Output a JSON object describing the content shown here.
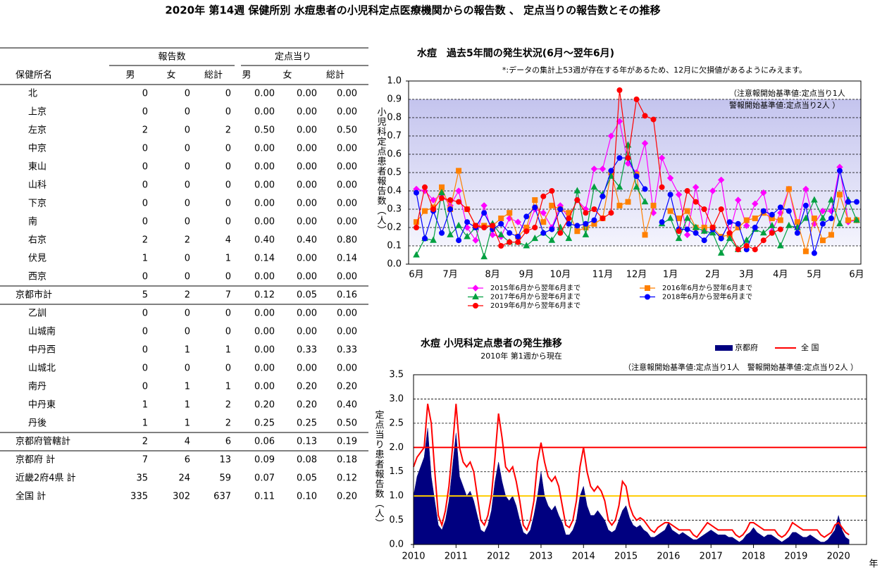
{
  "title": "2020年 第14週 保健所別 水痘患者の小児科定点医療機関からの報告数 、 定点当りの報告数とその推移",
  "table": {
    "group_headers": [
      "報告数",
      "定点当り"
    ],
    "columns": [
      "保健所名",
      "男",
      "女",
      "総計",
      "男",
      "女",
      "総計"
    ],
    "rows": [
      [
        "北",
        "0",
        "0",
        "0",
        "0.00",
        "0.00",
        "0.00"
      ],
      [
        "上京",
        "0",
        "0",
        "0",
        "0.00",
        "0.00",
        "0.00"
      ],
      [
        "左京",
        "2",
        "0",
        "2",
        "0.50",
        "0.00",
        "0.50"
      ],
      [
        "中京",
        "0",
        "0",
        "0",
        "0.00",
        "0.00",
        "0.00"
      ],
      [
        "東山",
        "0",
        "0",
        "0",
        "0.00",
        "0.00",
        "0.00"
      ],
      [
        "山科",
        "0",
        "0",
        "0",
        "0.00",
        "0.00",
        "0.00"
      ],
      [
        "下京",
        "0",
        "0",
        "0",
        "0.00",
        "0.00",
        "0.00"
      ],
      [
        "南",
        "0",
        "0",
        "0",
        "0.00",
        "0.00",
        "0.00"
      ],
      [
        "右京",
        "2",
        "2",
        "4",
        "0.40",
        "0.40",
        "0.80"
      ],
      [
        "伏見",
        "1",
        "0",
        "1",
        "0.14",
        "0.00",
        "0.14"
      ],
      [
        "西京",
        "0",
        "0",
        "0",
        "0.00",
        "0.00",
        "0.00"
      ],
      [
        "京都市計",
        "5",
        "2",
        "7",
        "0.12",
        "0.05",
        "0.16"
      ],
      [
        "乙訓",
        "0",
        "0",
        "0",
        "0.00",
        "0.00",
        "0.00"
      ],
      [
        "山城南",
        "0",
        "0",
        "0",
        "0.00",
        "0.00",
        "0.00"
      ],
      [
        "中丹西",
        "0",
        "1",
        "1",
        "0.00",
        "0.33",
        "0.33"
      ],
      [
        "山城北",
        "0",
        "0",
        "0",
        "0.00",
        "0.00",
        "0.00"
      ],
      [
        "南丹",
        "0",
        "1",
        "1",
        "0.00",
        "0.20",
        "0.20"
      ],
      [
        "中丹東",
        "1",
        "1",
        "2",
        "0.20",
        "0.20",
        "0.40"
      ],
      [
        "丹後",
        "1",
        "1",
        "2",
        "0.25",
        "0.25",
        "0.50"
      ],
      [
        "京都府管轄計",
        "2",
        "4",
        "6",
        "0.06",
        "0.13",
        "0.19"
      ],
      [
        "京都府  計",
        "7",
        "6",
        "13",
        "0.09",
        "0.08",
        "0.18"
      ],
      [
        "近畿2府4県  計",
        "35",
        "24",
        "59",
        "0.07",
        "0.05",
        "0.12"
      ],
      [
        "全国  計",
        "335",
        "302",
        "637",
        "0.11",
        "0.10",
        "0.20"
      ]
    ]
  },
  "chart_data": [
    {
      "type": "line",
      "title": "水痘　過去5年間の発生状況(6月～翌年6月)",
      "note": "*:データの集計上53週が存在する年があるため、12月に欠損値があるようにみえます。",
      "annotations": [
        "（注意報開始基準値:定点当り1人",
        "警報開始基準値:定点当り2人 ）"
      ],
      "y_label": "小児科定点患者報告数（人）",
      "categories": [
        "6月",
        null,
        null,
        null,
        "7月",
        null,
        null,
        null,
        null,
        "8月",
        null,
        null,
        null,
        "9月",
        null,
        null,
        null,
        "10月",
        null,
        null,
        null,
        null,
        "11月",
        null,
        null,
        null,
        "12月",
        null,
        null,
        null,
        "1月",
        null,
        null,
        null,
        null,
        "2月",
        null,
        null,
        null,
        "3月",
        null,
        null,
        null,
        "4月",
        null,
        null,
        null,
        "5月",
        null,
        null,
        null,
        null,
        "6月"
      ],
      "series": [
        {
          "name": "2015年6月から翌年6月まで",
          "color": "#ff00ff",
          "marker": "diamond",
          "values": [
            0.41,
            0.4,
            0.35,
            0.38,
            0.32,
            0.4,
            0.2,
            0.13,
            0.32,
            0.16,
            0.15,
            0.25,
            0.23,
            0.18,
            0.3,
            0.28,
            0.2,
            0.32,
            0.25,
            0.35,
            0.3,
            0.52,
            0.52,
            0.7,
            0.78,
            0.55,
            0.5,
            0.66,
            0.28,
            0.58,
            0.47,
            0.38,
            0.16,
            0.42,
            0.18,
            0.4,
            0.46,
            0.17,
            0.35,
            0.21,
            0.33,
            0.39,
            0.18,
            0.28,
            0.41,
            0.2,
            0.41,
            0.22,
            0.29,
            0.29,
            0.53,
            0.23,
            0.24
          ]
        },
        {
          "name": "2016年6月から翌年6月まで",
          "color": "#ff8000",
          "marker": "square",
          "values": [
            0.23,
            0.29,
            0.31,
            0.42,
            0.3,
            0.51,
            0.3,
            0.21,
            0.21,
            0.21,
            0.25,
            0.28,
            0.15,
            0.2,
            0.35,
            0.23,
            0.32,
            0.3,
            0.28,
            0.18,
            0.2,
            0.22,
            0.25,
            0.5,
            0.32,
            0.34,
            0.49,
            0.16,
            0.32,
            null,
            0.29,
            0.25,
            0.29,
            0.2,
            0.2,
            0.2,
            0.15,
            0.16,
            0.2,
            0.24,
            0.25,
            0.28,
            0.25,
            0.24,
            0.41,
            0.23,
            0.07,
            0.25,
            0.13,
            0.16,
            0.38,
            0.24,
            0.24
          ]
        },
        {
          "name": "2017年6月から翌年6月まで",
          "color": "#00a040",
          "marker": "triangle",
          "values": [
            0.05,
            0.14,
            0.13,
            0.39,
            0.16,
            0.21,
            0.15,
            0.2,
            0.04,
            0.22,
            0.16,
            0.12,
            0.12,
            0.1,
            0.14,
            0.17,
            0.13,
            0.2,
            0.14,
            0.4,
            0.16,
            0.42,
            0.38,
            0.48,
            0.42,
            0.65,
            0.42,
            0.34,
            null,
            0.22,
            0.25,
            0.14,
            0.25,
            0.2,
            0.18,
            0.17,
            0.06,
            0.14,
            0.08,
            0.13,
            0.19,
            0.17,
            0.21,
            0.1,
            0.21,
            0.2,
            0.25,
            0.35,
            0.25,
            0.35,
            0.22,
            0.35,
            0.24
          ]
        },
        {
          "name": "2018年6月から翌年6月まで",
          "color": "#0000ff",
          "marker": "circle",
          "values": [
            0.39,
            0.14,
            0.29,
            0.17,
            0.3,
            0.13,
            0.23,
            0.2,
            0.28,
            0.19,
            0.22,
            0.17,
            0.15,
            0.26,
            0.31,
            0.17,
            0.19,
            0.3,
            0.22,
            0.21,
            0.22,
            0.24,
            0.37,
            0.51,
            0.58,
            0.58,
            0.48,
            0.41,
            null,
            0.23,
            0.38,
            0.19,
            0.19,
            0.17,
            0.13,
            0.19,
            0.14,
            0.23,
            0.22,
            0.08,
            0.2,
            0.29,
            0.27,
            0.31,
            0.29,
            0.17,
            0.32,
            0.06,
            0.22,
            0.25,
            0.51,
            0.34,
            0.34
          ]
        },
        {
          "name": "2019年6月から翌年6月まで",
          "color": "#ff0000",
          "marker": "circle",
          "values": [
            0.2,
            0.42,
            0.3,
            0.36,
            0.35,
            0.34,
            0.3,
            0.21,
            0.2,
            0.21,
            0.1,
            0.12,
            0.12,
            0.18,
            0.2,
            0.37,
            0.4,
            0.17,
            0.25,
            0.35,
            0.28,
            0.3,
            0.25,
            0.28,
            0.95,
            0.58,
            0.9,
            0.81,
            0.79,
            0.42,
            null,
            0.18,
            0.4,
            0.34,
            0.3,
            0.2,
            0.3,
            0.17,
            0.08,
            0.1,
            0.08,
            0.13,
            0.17,
            0.19,
            null,
            null,
            null,
            null,
            null,
            null,
            null,
            null,
            null
          ]
        }
      ],
      "ylim": [
        0,
        1.0
      ],
      "yticks": [
        {
          "value": 0,
          "label": "0.0"
        },
        0.1,
        0.2,
        0.3,
        0.4,
        0.5,
        0.6,
        0.7,
        0.8,
        0.9,
        {
          "value": 1,
          "label": "1.0"
        }
      ],
      "grid": true
    },
    {
      "type": "area",
      "title": "水痘 小児科定点患者の発生推移",
      "subtitle": "2010年 第1週から現在",
      "annotations": [
        "（注意報開始基準値:定点当り1人　警報開始基準値:定点当り2人 ）"
      ],
      "y_label": "定点当り患者報告数（人）",
      "x_label": "年",
      "x": [
        2010,
        2010.083,
        2010.167,
        2010.25,
        2010.333,
        2010.417,
        2010.5,
        2010.583,
        2010.667,
        2010.75,
        2010.833,
        2010.917,
        2011,
        2011.083,
        2011.167,
        2011.25,
        2011.333,
        2011.417,
        2011.5,
        2011.583,
        2011.667,
        2011.75,
        2011.833,
        2011.917,
        2012,
        2012.083,
        2012.167,
        2012.25,
        2012.333,
        2012.417,
        2012.5,
        2012.583,
        2012.667,
        2012.75,
        2012.833,
        2012.917,
        2013,
        2013.083,
        2013.167,
        2013.25,
        2013.333,
        2013.417,
        2013.5,
        2013.583,
        2013.667,
        2013.75,
        2013.833,
        2013.917,
        2014,
        2014.083,
        2014.167,
        2014.25,
        2014.333,
        2014.417,
        2014.5,
        2014.583,
        2014.667,
        2014.75,
        2014.833,
        2014.917,
        2015,
        2015.083,
        2015.167,
        2015.25,
        2015.333,
        2015.417,
        2015.5,
        2015.583,
        2015.667,
        2015.75,
        2015.833,
        2015.917,
        2016,
        2016.083,
        2016.167,
        2016.25,
        2016.333,
        2016.417,
        2016.5,
        2016.583,
        2016.667,
        2016.75,
        2016.833,
        2016.917,
        2017,
        2017.083,
        2017.167,
        2017.25,
        2017.333,
        2017.417,
        2017.5,
        2017.583,
        2017.667,
        2017.75,
        2017.833,
        2017.917,
        2018,
        2018.083,
        2018.167,
        2018.25,
        2018.333,
        2018.417,
        2018.5,
        2018.583,
        2018.667,
        2018.75,
        2018.833,
        2018.917,
        2019,
        2019.083,
        2019.167,
        2019.25,
        2019.333,
        2019.417,
        2019.5,
        2019.583,
        2019.667,
        2019.75,
        2019.833,
        2019.917,
        2020,
        2020.083,
        2020.167,
        2020.25
      ],
      "series": [
        {
          "name": "京都府",
          "color": "#000080",
          "kind": "area",
          "values": [
            1.0,
            1.4,
            1.6,
            1.8,
            2.4,
            1.4,
            0.9,
            0.4,
            0.3,
            0.5,
            0.9,
            1.6,
            2.3,
            1.4,
            1.2,
            1.0,
            1.1,
            0.9,
            0.6,
            0.3,
            0.25,
            0.4,
            0.7,
            1.3,
            1.7,
            1.3,
            1.0,
            0.9,
            1.0,
            0.8,
            0.5,
            0.25,
            0.2,
            0.3,
            0.6,
            1.0,
            1.5,
            1.0,
            0.8,
            0.7,
            0.8,
            0.6,
            0.45,
            0.2,
            0.2,
            0.3,
            0.5,
            1.0,
            1.2,
            0.8,
            0.6,
            0.6,
            0.7,
            0.6,
            0.5,
            0.3,
            0.25,
            0.3,
            0.5,
            0.7,
            0.8,
            0.55,
            0.4,
            0.35,
            0.4,
            0.3,
            0.25,
            0.15,
            0.15,
            0.2,
            0.25,
            0.3,
            0.45,
            0.3,
            0.25,
            0.2,
            0.25,
            0.2,
            0.15,
            0.1,
            0.1,
            0.15,
            0.2,
            0.25,
            0.3,
            0.25,
            0.2,
            0.2,
            0.2,
            0.15,
            0.15,
            0.1,
            0.05,
            0.1,
            0.2,
            0.25,
            0.35,
            0.25,
            0.2,
            0.15,
            0.2,
            0.2,
            0.15,
            0.1,
            0.05,
            0.1,
            0.15,
            0.25,
            0.25,
            0.2,
            0.15,
            0.15,
            0.2,
            0.15,
            0.1,
            0.05,
            0.05,
            0.1,
            0.2,
            0.3,
            0.6,
            0.3,
            0.15,
            0.1
          ]
        },
        {
          "name": "全 国",
          "color": "#ff0000",
          "kind": "line",
          "values": [
            1.6,
            1.8,
            1.9,
            2.0,
            2.9,
            2.5,
            1.5,
            0.6,
            0.4,
            0.7,
            1.2,
            2.0,
            2.9,
            2.0,
            1.7,
            1.6,
            1.7,
            1.5,
            1.0,
            0.5,
            0.4,
            0.6,
            1.0,
            1.8,
            2.7,
            2.2,
            1.6,
            1.5,
            1.6,
            1.3,
            0.9,
            0.4,
            0.3,
            0.5,
            0.9,
            1.7,
            2.1,
            1.7,
            1.4,
            1.3,
            1.4,
            1.2,
            0.8,
            0.4,
            0.35,
            0.5,
            0.9,
            1.6,
            2.0,
            1.5,
            1.2,
            1.1,
            1.2,
            1.1,
            0.9,
            0.5,
            0.4,
            0.5,
            0.8,
            1.3,
            1.2,
            0.8,
            0.6,
            0.5,
            0.55,
            0.5,
            0.4,
            0.3,
            0.25,
            0.35,
            0.4,
            0.45,
            0.45,
            0.4,
            0.35,
            0.3,
            0.3,
            0.3,
            0.3,
            0.2,
            0.15,
            0.25,
            0.35,
            0.45,
            0.4,
            0.35,
            0.3,
            0.3,
            0.3,
            0.3,
            0.3,
            0.2,
            0.15,
            0.2,
            0.3,
            0.45,
            0.45,
            0.4,
            0.35,
            0.3,
            0.3,
            0.3,
            0.3,
            0.2,
            0.15,
            0.2,
            0.3,
            0.45,
            0.4,
            0.35,
            0.3,
            0.3,
            0.3,
            0.3,
            0.3,
            0.2,
            0.15,
            0.2,
            0.25,
            0.4,
            0.45,
            0.35,
            0.25,
            0.2
          ]
        }
      ],
      "reference_lines": [
        {
          "value": 2.0,
          "color": "#ff0000"
        },
        {
          "value": 1.0,
          "color": "#ffcc00"
        }
      ],
      "xlim": [
        2010,
        2020.66
      ],
      "xticks": [
        2010,
        2011,
        2012,
        2013,
        2014,
        2015,
        2016,
        2017,
        2018,
        2019,
        2020
      ],
      "ylim": [
        0,
        3.5
      ],
      "yticks": [
        {
          "value": 0,
          "label": "0.0"
        },
        0.5,
        {
          "value": 1,
          "label": "1.0"
        },
        1.5,
        {
          "value": 2,
          "label": "2.0"
        },
        2.5,
        {
          "value": 3,
          "label": "3.0"
        },
        3.5
      ],
      "grid": true
    }
  ]
}
